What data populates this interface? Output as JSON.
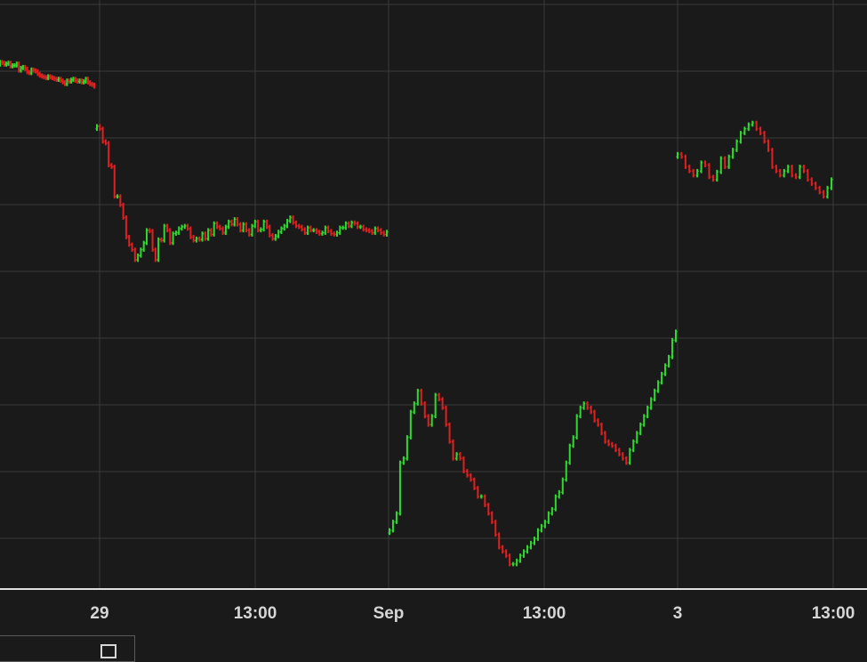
{
  "chart_data": {
    "type": "ohlc",
    "colors": {
      "background": "#1a1a1a",
      "grid": "#3a3a3a",
      "axis_line": "#e0e0e0",
      "up": "#2fd92f",
      "down": "#e02020",
      "text": "#d6d6d6"
    },
    "grid": true,
    "x_tick_labels": [
      "29",
      "13:00",
      "Sep",
      "13:00",
      "3",
      "13:00"
    ],
    "y_tick_labels": [],
    "segments": [
      {
        "start": 0,
        "end": 106,
        "closes": [
          74,
          73,
          71,
          72,
          73,
          69,
          70,
          70,
          72,
          64,
          67,
          68,
          66,
          62,
          61,
          65,
          64,
          63,
          60,
          58,
          57,
          56,
          55,
          57,
          56,
          55,
          54,
          53,
          54,
          52,
          50,
          48,
          52,
          51,
          53,
          54,
          52,
          51,
          52,
          50,
          51,
          54,
          50,
          48,
          47,
          45
        ]
      },
      {
        "start": 109,
        "end": 435,
        "closes": [
          -2,
          -5,
          -20,
          -22,
          -48,
          -50,
          -85,
          -85,
          -95,
          -110,
          -133,
          -142,
          -148,
          -160,
          -155,
          -148,
          -140,
          -125,
          -126,
          -148,
          -160,
          -136,
          -137,
          -120,
          -125,
          -140,
          -129,
          -128,
          -123,
          -121,
          -120,
          -123,
          -133,
          -137,
          -135,
          -136,
          -129,
          -135,
          -125,
          -130,
          -117,
          -121,
          -123,
          -128,
          -121,
          -115,
          -118,
          -112,
          -118,
          -125,
          -118,
          -125,
          -130,
          -120,
          -115,
          -125,
          -124,
          -115,
          -121,
          -131,
          -135,
          -132,
          -127,
          -123,
          -120,
          -114,
          -110,
          -116,
          -120,
          -121,
          -124,
          -128,
          -122,
          -125,
          -125,
          -127,
          -129,
          -128,
          -122,
          -126,
          -129,
          -130,
          -128,
          -122,
          -122,
          -117,
          -120,
          -116,
          -117,
          -121,
          -121,
          -124,
          -125,
          -126,
          -128,
          -123,
          -125,
          -128,
          -130,
          -127
        ]
      },
      {
        "start": 438,
        "end": 760,
        "closes": [
          -480,
          -470,
          -460,
          -400,
          -395,
          -370,
          -340,
          -330,
          -315,
          -330,
          -345,
          -355,
          -345,
          -320,
          -325,
          -335,
          -355,
          -375,
          -395,
          -390,
          -395,
          -410,
          -415,
          -420,
          -430,
          -440,
          -440,
          -450,
          -460,
          -470,
          -485,
          -500,
          -505,
          -510,
          -520,
          -520,
          -516,
          -510,
          -505,
          -500,
          -495,
          -490,
          -480,
          -475,
          -470,
          -460,
          -455,
          -440,
          -435,
          -420,
          -400,
          -380,
          -370,
          -345,
          -335,
          -330,
          -335,
          -340,
          -350,
          -355,
          -365,
          -375,
          -378,
          -380,
          -385,
          -390,
          -395,
          -400,
          -385,
          -375,
          -365,
          -355,
          -345,
          -335,
          -325,
          -315,
          -305,
          -295,
          -285,
          -275,
          -255,
          -245
        ]
      },
      {
        "start": 762,
        "end": 935,
        "closes": [
          -35,
          -38,
          -50,
          -55,
          -60,
          -55,
          -45,
          -48,
          -62,
          -65,
          -56,
          -40,
          -50,
          -38,
          -30,
          -20,
          -10,
          -5,
          0,
          2,
          -5,
          -10,
          -20,
          -30,
          -50,
          -55,
          -60,
          -55,
          -50,
          -60,
          -62,
          -50,
          -55,
          -65,
          -70,
          -75,
          -80,
          -85,
          -75,
          -65
        ]
      }
    ]
  }
}
